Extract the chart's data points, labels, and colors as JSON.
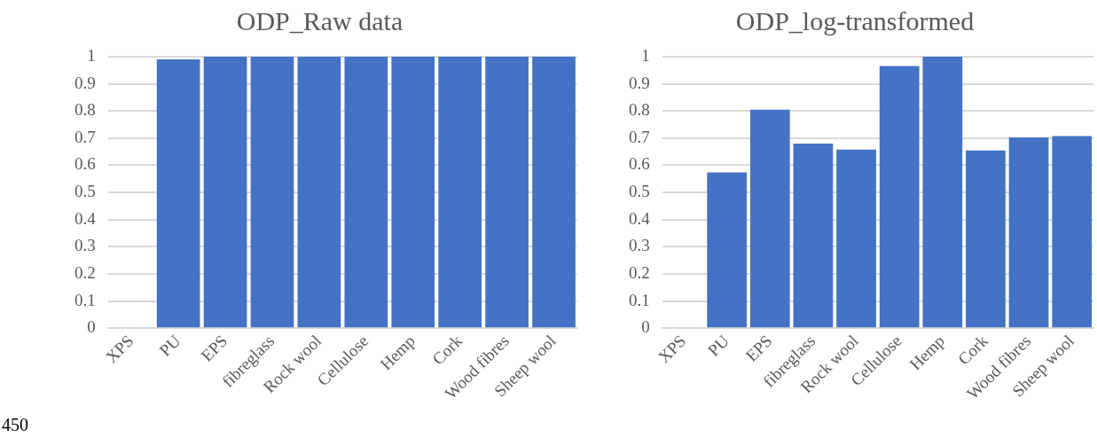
{
  "chart_data": [
    {
      "type": "bar",
      "title": "ODP_Raw data",
      "categories": [
        "XPS",
        "PU",
        "EPS",
        "fibreglass",
        "Rock wool",
        "Cellulose",
        "Hemp",
        "Cork",
        "Wood fibres",
        "Sheep wool"
      ],
      "values": [
        0,
        0.99,
        1,
        1,
        1,
        1,
        1,
        1,
        1,
        1
      ],
      "color": "#4472c4",
      "ylim": [
        0,
        1
      ],
      "yticks": [
        0,
        0.1,
        0.2,
        0.3,
        0.4,
        0.5,
        0.6,
        0.7,
        0.8,
        0.9,
        1
      ],
      "grid": "y",
      "legend": false,
      "annotations": [
        "450"
      ]
    },
    {
      "type": "bar",
      "title": "ODP_log-transformed",
      "categories": [
        "XPS",
        "PU",
        "EPS",
        "fibreglass",
        "Rock wool",
        "Cellulose",
        "Hemp",
        "Cork",
        "Wood fibres",
        "Sheep wool"
      ],
      "values": [
        0,
        0.574,
        0.805,
        0.68,
        0.658,
        0.966,
        1,
        0.655,
        0.703,
        0.708
      ],
      "color": "#4472c4",
      "ylim": [
        0,
        1
      ],
      "yticks": [
        0,
        0.1,
        0.2,
        0.3,
        0.4,
        0.5,
        0.6,
        0.7,
        0.8,
        0.9,
        1
      ],
      "grid": "y",
      "legend": false
    }
  ]
}
